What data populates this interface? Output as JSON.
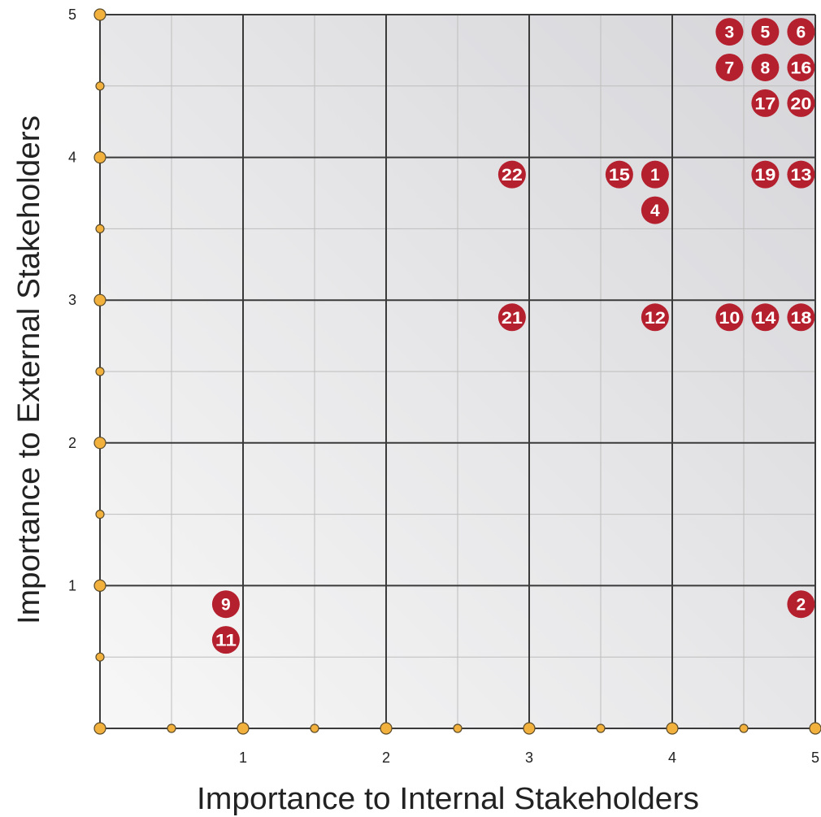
{
  "chart_data": {
    "type": "scatter",
    "title": "",
    "xlabel": "Importance to Internal Stakeholders",
    "ylabel": "Importance to External Stakeholders",
    "xlim": [
      0,
      5
    ],
    "ylim": [
      0,
      5
    ],
    "x_ticks": [
      "1",
      "2",
      "3",
      "4",
      "5"
    ],
    "y_ticks": [
      "1",
      "2",
      "3",
      "4",
      "5"
    ],
    "grid": true,
    "major_grid_step": 1,
    "minor_grid_step": 0.5,
    "legend": "none",
    "points": [
      {
        "label": "3",
        "x": 4.4,
        "y": 4.88
      },
      {
        "label": "5",
        "x": 4.65,
        "y": 4.88
      },
      {
        "label": "6",
        "x": 4.9,
        "y": 4.88
      },
      {
        "label": "7",
        "x": 4.4,
        "y": 4.63
      },
      {
        "label": "8",
        "x": 4.65,
        "y": 4.63
      },
      {
        "label": "16",
        "x": 4.9,
        "y": 4.63
      },
      {
        "label": "17",
        "x": 4.65,
        "y": 4.38
      },
      {
        "label": "20",
        "x": 4.9,
        "y": 4.38
      },
      {
        "label": "22",
        "x": 2.88,
        "y": 3.88
      },
      {
        "label": "15",
        "x": 3.63,
        "y": 3.88
      },
      {
        "label": "1",
        "x": 3.88,
        "y": 3.88
      },
      {
        "label": "4",
        "x": 3.88,
        "y": 3.63
      },
      {
        "label": "19",
        "x": 4.65,
        "y": 3.88
      },
      {
        "label": "13",
        "x": 4.9,
        "y": 3.88
      },
      {
        "label": "21",
        "x": 2.88,
        "y": 2.88
      },
      {
        "label": "12",
        "x": 3.88,
        "y": 2.88
      },
      {
        "label": "10",
        "x": 4.4,
        "y": 2.88
      },
      {
        "label": "14",
        "x": 4.65,
        "y": 2.88
      },
      {
        "label": "18",
        "x": 4.9,
        "y": 2.88
      },
      {
        "label": "9",
        "x": 0.88,
        "y": 0.87
      },
      {
        "label": "11",
        "x": 0.88,
        "y": 0.62
      },
      {
        "label": "2",
        "x": 4.9,
        "y": 0.87
      }
    ],
    "colors": {
      "marker": "#b5202e",
      "marker_text": "#ffffff",
      "axis_dot": "#f2b13c",
      "axis_dot_stroke": "#5a4a2a",
      "major_grid": "#3a3a3a",
      "minor_grid": "#bdbdbd",
      "plot_bg_light": "#f7f7f7",
      "plot_bg_dark": "#d6d6da",
      "text": "#222222"
    }
  }
}
